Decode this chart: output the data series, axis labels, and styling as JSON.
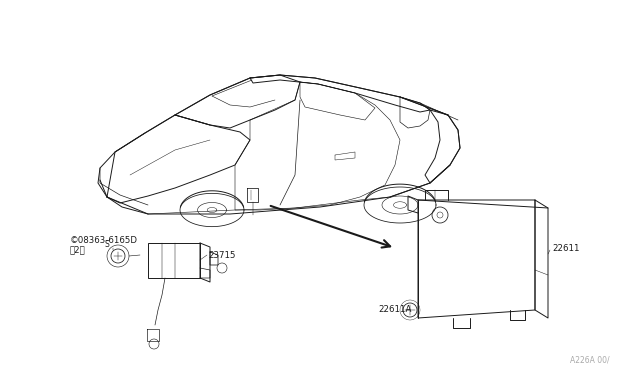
{
  "bg_color": "#ffffff",
  "line_color": "#1a1a1a",
  "fig_width": 6.4,
  "fig_height": 3.72,
  "dpi": 100,
  "labels": {
    "part_08363_line1": "©08363-6165D",
    "part_08363_line2": "（2）",
    "part_23715": "23715",
    "part_22611": "22611",
    "part_22611A": "22611A",
    "watermark": "A226A 00/"
  }
}
